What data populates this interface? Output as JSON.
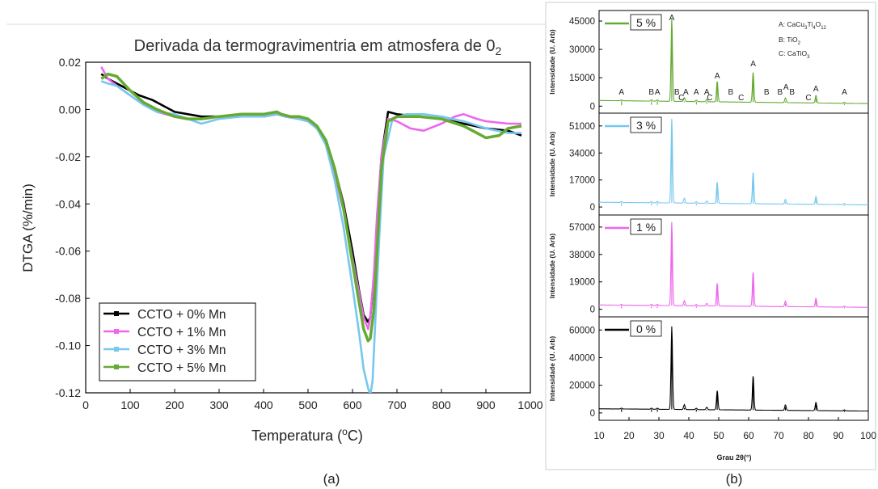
{
  "panels": {
    "a_label": "(a)",
    "b_label": "(b)"
  },
  "chart_data": [
    {
      "type": "line",
      "title": "Derivada da termogravimentria em atmosfera de 0",
      "title_subscript": "2",
      "xlabel": "Temperatura (",
      "xlabel_super": "o",
      "xlabel_end": "C)",
      "ylabel": "DTGA (%/min)",
      "xlim": [
        0,
        1000
      ],
      "ylim": [
        -0.12,
        0.02
      ],
      "xticks": [
        "0",
        "100",
        "200",
        "300",
        "400",
        "500",
        "600",
        "700",
        "800",
        "900",
        "1000"
      ],
      "yticks": [
        "0.02",
        "0.00",
        "-0.02",
        "-0.04",
        "-0.06",
        "-0.08",
        "-0.10",
        "-0.12"
      ],
      "legend_position": "bottom-left",
      "series": [
        {
          "name": "CCTO + 0% Mn",
          "color": "#000000",
          "x": [
            35,
            50,
            60,
            80,
            100,
            120,
            150,
            180,
            200,
            230,
            260,
            300,
            350,
            400,
            430,
            450,
            480,
            500,
            520,
            540,
            560,
            580,
            600,
            615,
            625,
            635,
            640,
            648,
            655,
            665,
            680,
            700,
            750,
            800,
            850,
            900,
            950,
            980
          ],
          "y": [
            0.015,
            0.013,
            0.012,
            0.01,
            0.008,
            0.006,
            0.004,
            0.001,
            -0.001,
            -0.002,
            -0.003,
            -0.003,
            -0.003,
            -0.003,
            -0.002,
            -0.003,
            -0.004,
            -0.005,
            -0.008,
            -0.014,
            -0.025,
            -0.04,
            -0.06,
            -0.077,
            -0.087,
            -0.09,
            -0.088,
            -0.072,
            -0.048,
            -0.02,
            -0.001,
            -0.002,
            -0.003,
            -0.004,
            -0.006,
            -0.008,
            -0.009,
            -0.011
          ]
        },
        {
          "name": "CCTO + 1% Mn",
          "color": "#ee66ee",
          "x": [
            35,
            50,
            70,
            100,
            130,
            160,
            200,
            230,
            260,
            300,
            350,
            400,
            430,
            450,
            480,
            500,
            520,
            540,
            560,
            580,
            600,
            615,
            625,
            635,
            640,
            648,
            655,
            665,
            680,
            700,
            730,
            760,
            800,
            830,
            850,
            880,
            900,
            950,
            980
          ],
          "y": [
            0.018,
            0.013,
            0.01,
            0.006,
            0.002,
            -0.001,
            -0.003,
            -0.004,
            -0.004,
            -0.003,
            -0.003,
            -0.003,
            -0.002,
            -0.003,
            -0.004,
            -0.005,
            -0.008,
            -0.014,
            -0.027,
            -0.043,
            -0.063,
            -0.078,
            -0.088,
            -0.093,
            -0.088,
            -0.07,
            -0.045,
            -0.02,
            -0.004,
            -0.005,
            -0.008,
            -0.009,
            -0.006,
            -0.003,
            -0.002,
            -0.004,
            -0.005,
            -0.006,
            -0.006
          ]
        },
        {
          "name": "CCTO + 3% Mn",
          "color": "#77c7ee",
          "x": [
            35,
            50,
            70,
            100,
            130,
            160,
            200,
            230,
            260,
            300,
            350,
            400,
            430,
            450,
            480,
            500,
            520,
            540,
            560,
            580,
            600,
            615,
            625,
            635,
            640,
            645,
            650,
            660,
            670,
            690,
            720,
            760,
            800,
            850,
            900,
            950,
            980
          ],
          "y": [
            0.012,
            0.011,
            0.01,
            0.006,
            0.002,
            -0.001,
            -0.002,
            -0.004,
            -0.006,
            -0.004,
            -0.003,
            -0.003,
            -0.002,
            -0.003,
            -0.004,
            -0.005,
            -0.008,
            -0.015,
            -0.03,
            -0.05,
            -0.075,
            -0.095,
            -0.11,
            -0.118,
            -0.121,
            -0.115,
            -0.095,
            -0.055,
            -0.02,
            -0.004,
            -0.002,
            -0.002,
            -0.003,
            -0.005,
            -0.008,
            -0.01,
            -0.01
          ]
        },
        {
          "name": "CCTO + 5% Mn",
          "color": "#66aa33",
          "x": [
            35,
            50,
            70,
            100,
            130,
            160,
            200,
            230,
            260,
            300,
            350,
            400,
            430,
            440,
            460,
            480,
            500,
            520,
            540,
            560,
            580,
            600,
            615,
            625,
            635,
            640,
            648,
            655,
            665,
            680,
            700,
            750,
            800,
            850,
            880,
            900,
            930,
            950,
            980
          ],
          "y": [
            0.013,
            0.015,
            0.014,
            0.008,
            0.003,
            0.0,
            -0.003,
            -0.004,
            -0.004,
            -0.003,
            -0.002,
            -0.002,
            -0.001,
            -0.002,
            -0.003,
            -0.003,
            -0.004,
            -0.007,
            -0.013,
            -0.025,
            -0.042,
            -0.065,
            -0.082,
            -0.093,
            -0.098,
            -0.097,
            -0.085,
            -0.06,
            -0.025,
            -0.005,
            -0.003,
            -0.003,
            -0.004,
            -0.007,
            -0.01,
            -0.012,
            -0.011,
            -0.008,
            -0.007
          ]
        }
      ]
    },
    {
      "type": "line",
      "title": "",
      "xlabel": "Grau 2θ(°)",
      "xlim": [
        10,
        100
      ],
      "xticks": [
        "10",
        "20",
        "30",
        "40",
        "50",
        "60",
        "70",
        "80",
        "90",
        "100"
      ],
      "legend_annotations": [
        "A: CaCu",
        "3",
        "Ti",
        "4",
        "O",
        "12",
        "B: TiO",
        "2",
        "C: CaTiO",
        "3"
      ],
      "peak_labels": [
        {
          "label": "A",
          "x": 17.5
        },
        {
          "label": "B",
          "x": 27.5
        },
        {
          "label": "A",
          "x": 29.5
        },
        {
          "label": "A",
          "x": 34.3
        },
        {
          "label": "B",
          "x": 36
        },
        {
          "label": "C",
          "x": 37.5
        },
        {
          "label": "A",
          "x": 39
        },
        {
          "label": "A",
          "x": 42.5
        },
        {
          "label": "A",
          "x": 46
        },
        {
          "label": "C",
          "x": 47
        },
        {
          "label": "A",
          "x": 49.5
        },
        {
          "label": "B",
          "x": 54
        },
        {
          "label": "C",
          "x": 57.5
        },
        {
          "label": "A",
          "x": 61.5
        },
        {
          "label": "B",
          "x": 66
        },
        {
          "label": "B",
          "x": 70.5
        },
        {
          "label": "A",
          "x": 72.5
        },
        {
          "label": "B",
          "x": 74.5
        },
        {
          "label": "C",
          "x": 80
        },
        {
          "label": "A",
          "x": 82.5
        },
        {
          "label": "A",
          "x": 92
        }
      ],
      "subplots": [
        {
          "name": "5 %",
          "color": "#66aa33",
          "ylabel": "Intensidade (U. Arb)",
          "yticks": [
            "0",
            "15000",
            "30000",
            "45000"
          ],
          "ylim": [
            -2000,
            48000
          ],
          "baseline": 3000,
          "peaks": [
            {
              "x": 17.5,
              "h": 500
            },
            {
              "x": 27.5,
              "h": 700
            },
            {
              "x": 29.5,
              "h": 700
            },
            {
              "x": 34.3,
              "h": 44000
            },
            {
              "x": 38.5,
              "h": 2000
            },
            {
              "x": 42.5,
              "h": 800
            },
            {
              "x": 46,
              "h": 1200
            },
            {
              "x": 49.5,
              "h": 11000
            },
            {
              "x": 61.5,
              "h": 16000
            },
            {
              "x": 72.3,
              "h": 2500
            },
            {
              "x": 82.5,
              "h": 4000
            },
            {
              "x": 92,
              "h": 600
            }
          ]
        },
        {
          "name": "3 %",
          "color": "#77c7ee",
          "ylabel": "Intensidade (U. Arb)",
          "yticks": [
            "0",
            "17000",
            "34000",
            "51000"
          ],
          "ylim": [
            -3000,
            56000
          ],
          "baseline": 3000,
          "peaks": [
            {
              "x": 17.5,
              "h": 600
            },
            {
              "x": 27.5,
              "h": 800
            },
            {
              "x": 29.5,
              "h": 800
            },
            {
              "x": 34.3,
              "h": 53000
            },
            {
              "x": 38.5,
              "h": 3000
            },
            {
              "x": 42.5,
              "h": 1000
            },
            {
              "x": 46,
              "h": 1500
            },
            {
              "x": 49.5,
              "h": 13500
            },
            {
              "x": 61.5,
              "h": 20000
            },
            {
              "x": 72.3,
              "h": 3000
            },
            {
              "x": 82.5,
              "h": 5000
            },
            {
              "x": 92,
              "h": 700
            }
          ]
        },
        {
          "name": "1 %",
          "color": "#ee66ee",
          "ylabel": "Intensidade (U. Arb)",
          "yticks": [
            "0",
            "19000",
            "38000",
            "57000"
          ],
          "ylim": [
            -3000,
            62000
          ],
          "baseline": 3000,
          "peaks": [
            {
              "x": 17.5,
              "h": 600
            },
            {
              "x": 27.5,
              "h": 800
            },
            {
              "x": 29.5,
              "h": 800
            },
            {
              "x": 34.3,
              "h": 58000
            },
            {
              "x": 38.5,
              "h": 3500
            },
            {
              "x": 42.5,
              "h": 1000
            },
            {
              "x": 46,
              "h": 1800
            },
            {
              "x": 49.5,
              "h": 16000
            },
            {
              "x": 61.5,
              "h": 24000
            },
            {
              "x": 72.3,
              "h": 4000
            },
            {
              "x": 82.5,
              "h": 6000
            },
            {
              "x": 92,
              "h": 700
            }
          ]
        },
        {
          "name": "0 %",
          "color": "#000000",
          "ylabel": "Intensidade (U. Arb)",
          "yticks": [
            "0",
            "20000",
            "40000",
            "60000"
          ],
          "ylim": [
            -3000,
            66000
          ],
          "baseline": 3000,
          "peaks": [
            {
              "x": 17.5,
              "h": 600
            },
            {
              "x": 27.5,
              "h": 800
            },
            {
              "x": 29.5,
              "h": 800
            },
            {
              "x": 34.3,
              "h": 60000
            },
            {
              "x": 38.5,
              "h": 3500
            },
            {
              "x": 42.5,
              "h": 1000
            },
            {
              "x": 46,
              "h": 1800
            },
            {
              "x": 49.5,
              "h": 14000
            },
            {
              "x": 61.5,
              "h": 25000
            },
            {
              "x": 72.3,
              "h": 4000
            },
            {
              "x": 82.5,
              "h": 6000
            },
            {
              "x": 92,
              "h": 700
            }
          ]
        }
      ]
    }
  ]
}
